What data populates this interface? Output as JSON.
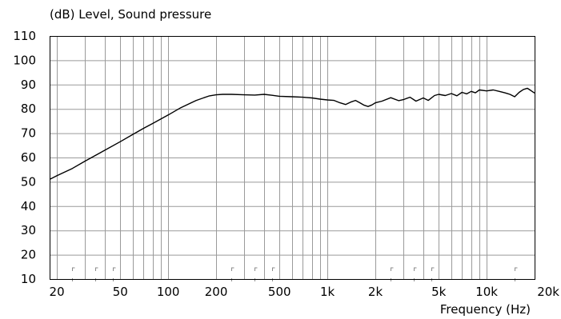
{
  "chart_data": {
    "type": "line",
    "title": "(dB)  Level, Sound pressure",
    "xlabel": "Frequency  (Hz)",
    "ylabel": "",
    "x_scale": "log",
    "xlim": [
      18,
      20000
    ],
    "ylim": [
      10,
      110
    ],
    "grid": true,
    "x_tick_values": [
      20,
      50,
      100,
      200,
      500,
      1000,
      2000,
      5000,
      10000,
      20000
    ],
    "x_tick_labels": [
      "20",
      "50",
      "100",
      "200",
      "500",
      "1k",
      "2k",
      "5k",
      "10k",
      "20k"
    ],
    "y_ticks": [
      10,
      20,
      30,
      40,
      50,
      60,
      70,
      80,
      90,
      100,
      110
    ],
    "line_color": "#000000",
    "grid_color": "#9a9a9a",
    "series": [
      {
        "x": [
          18,
          20,
          25,
          30,
          40,
          50,
          60,
          70,
          80,
          100,
          120,
          150,
          180,
          200,
          220,
          250,
          300,
          350,
          400,
          450,
          500,
          600,
          700,
          800,
          900,
          1000,
          1100,
          1200,
          1300,
          1400,
          1500,
          1600,
          1700,
          1800,
          1900,
          2000,
          2200,
          2500,
          2800,
          3000,
          3300,
          3600,
          4000,
          4300,
          4700,
          5000,
          5500,
          6000,
          6500,
          7000,
          7500,
          8000,
          8500,
          9000,
          10000,
          11000,
          12000,
          13000,
          14000,
          15000,
          16000,
          17000,
          18000,
          19000,
          20000
        ],
        "y": [
          51,
          52.5,
          55.5,
          58.5,
          63,
          66.5,
          69.5,
          72,
          74,
          77.5,
          80.5,
          83.5,
          85.3,
          85.8,
          86,
          86,
          85.8,
          85.7,
          86,
          85.6,
          85.2,
          85,
          84.8,
          84.5,
          84,
          83.7,
          83.5,
          82.5,
          81.8,
          82.8,
          83.5,
          82.5,
          81.5,
          81,
          81.6,
          82.5,
          83.2,
          84.6,
          83.4,
          83.8,
          84.8,
          83.2,
          84.5,
          83.5,
          85.5,
          86,
          85.5,
          86.3,
          85.4,
          86.8,
          86.2,
          87.2,
          86.6,
          87.8,
          87.4,
          87.8,
          87.2,
          86.6,
          86,
          85,
          86.8,
          88,
          88.5,
          87.5,
          86.5
        ]
      }
    ]
  }
}
